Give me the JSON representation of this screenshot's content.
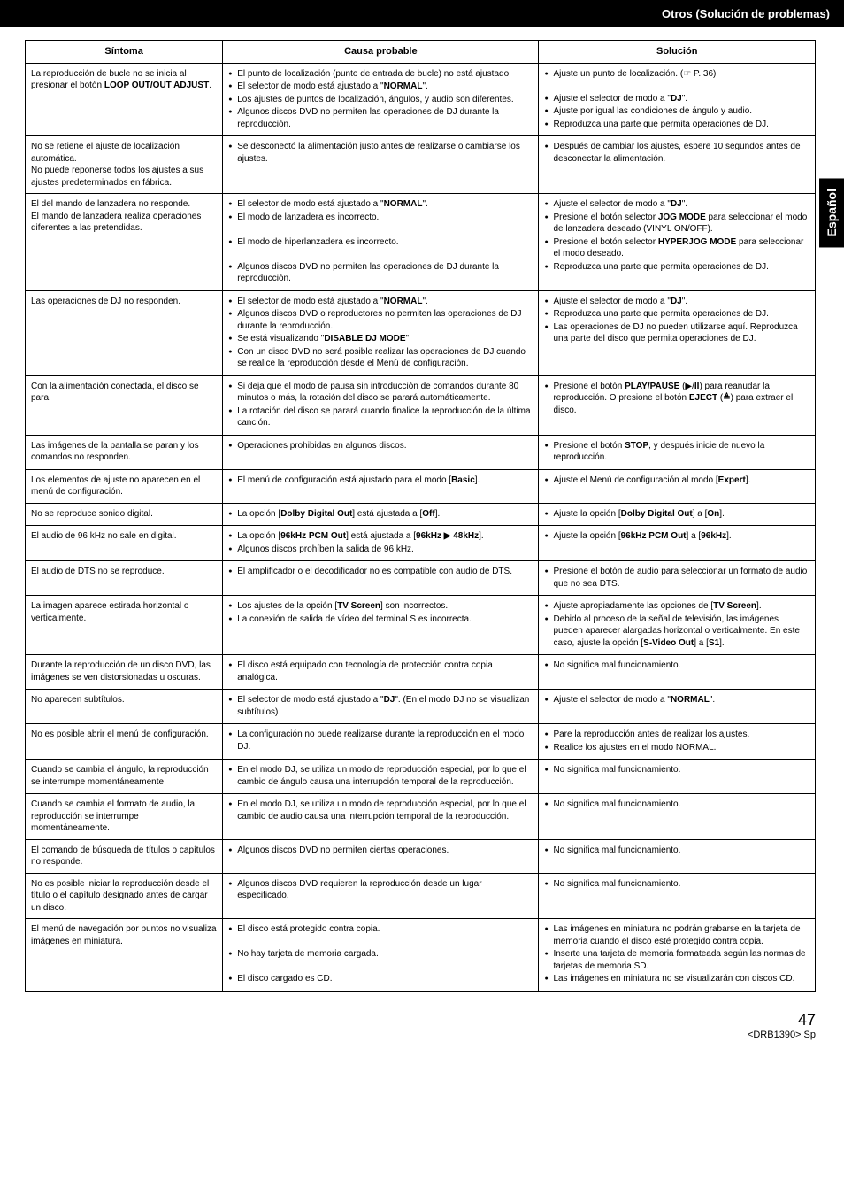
{
  "header": {
    "title": "Otros (Solución de problemas)"
  },
  "sidetab": {
    "label": "Español"
  },
  "footer": {
    "page": "47",
    "code": "<DRB1390> Sp"
  },
  "table": {
    "headers": {
      "c1": "Síntoma",
      "c2": "Causa probable",
      "c3": "Solución"
    },
    "rows": [
      {
        "c1": "La reproducción de bucle no se inicia al presionar el botón <b>LOOP OUT/OUT ADJUST</b>.",
        "c2": "<ul><li>El punto de localización (punto de entrada de bucle) no está ajustado.</li><li>El selector de modo está ajustado a \"<b>NORMAL</b>\".</li><li>Los ajustes de puntos de localización, ángulos, y audio son diferentes.</li><li>Algunos discos DVD no permiten las operaciones de DJ durante la reproducción.</li></ul>",
        "c3": "<ul><li>Ajuste un punto de localización. (☞ P. 36)</li></ul><br><ul><li>Ajuste el selector de modo a \"<b>DJ</b>\".</li><li>Ajuste por igual las condiciones de ángulo y audio.</li><li>Reproduzca una parte que permita operaciones de DJ.</li></ul>"
      },
      {
        "c1": "No se retiene el ajuste de localización automática.<br>No puede reponerse todos los ajustes a sus ajustes predeterminados en fábrica.",
        "c2": "<ul><li>Se desconectó la alimentación justo antes de realizarse o cambiarse los ajustes.</li></ul>",
        "c3": "<ul><li>Después de cambiar los ajustes, espere 10 segundos antes de desconectar la alimentación.</li></ul>"
      },
      {
        "c1": "El del mando de lanzadera no responde.<br>El mando de lanzadera realiza operaciones diferentes a las pretendidas.",
        "c2": "<ul><li>El selector de modo está ajustado a \"<b>NORMAL</b>\".</li><li>El modo de lanzadera es incorrecto.</li></ul><br><ul><li>El modo de hiperlanzadera es incorrecto.</li></ul><br><ul><li>Algunos discos DVD no permiten las operaciones de DJ durante la reproducción.</li></ul>",
        "c3": "<ul><li>Ajuste el selector de modo a \"<b>DJ</b>\".</li><li>Presione el botón selector <b>JOG MODE</b> para seleccionar el modo de lanzadera deseado (VINYL ON/OFF).</li><li>Presione el botón selector <b>HYPERJOG MODE</b> para seleccionar el modo deseado.</li><li>Reproduzca una parte que permita operaciones de DJ.</li></ul>"
      },
      {
        "c1": "Las operaciones de DJ no responden.",
        "c2": "<ul><li>El selector de modo está ajustado a \"<b>NORMAL</b>\".</li><li>Algunos discos DVD o reproductores no permiten las operaciones de DJ durante la reproducción.</li><li>Se está visualizando \"<b>DISABLE DJ MODE</b>\".</li><li>Con un disco DVD no será posible realizar las operaciones de DJ cuando se realice la reproducción desde el Menú de configuración.</li></ul>",
        "c3": "<ul><li>Ajuste el selector de modo a \"<b>DJ</b>\".</li><li>Reproduzca una parte que permita operaciones de DJ.</li><li>Las operaciones de DJ no pueden utilizarse aquí. Reproduzca una parte del disco que permita operaciones de DJ.</li></ul>"
      },
      {
        "c1": "Con la alimentación conectada, el disco se para.",
        "c2": "<ul><li>Si deja que el modo de pausa sin introducción de comandos durante 80 minutos o más, la rotación del disco se parará automáticamente.</li><li>La rotación del disco se parará cuando finalice la reproducción de la última canción.</li></ul>",
        "c3": "<ul><li>Presione el botón <b>PLAY/PAUSE</b> (▶/<b>II</b>) para reanudar la reproducción. O presione el botón <b>EJECT</b> (<span class='ejecticon'>≜</span>) para extraer el disco.</li></ul>"
      },
      {
        "c1": "Las imágenes de la pantalla se paran y los comandos no responden.",
        "c2": "<ul><li>Operaciones prohibidas en algunos discos.</li></ul>",
        "c3": "<ul><li>Presione el botón <b>STOP</b>, y después inicie de nuevo la reproducción.</li></ul>"
      },
      {
        "c1": "Los elementos de ajuste no aparecen en el menú de configuración.",
        "c2": "<ul><li>El menú de configuración está ajustado para el modo [<b>Basic</b>].</li></ul>",
        "c3": "<ul><li>Ajuste el Menú de configuración al modo [<b>Expert</b>].</li></ul>"
      },
      {
        "c1": "No se reproduce sonido digital.",
        "c2": "<ul><li>La opción [<b>Dolby Digital Out</b>] está ajustada a [<b>Off</b>].</li></ul>",
        "c3": "<ul><li>Ajuste la opción [<b>Dolby Digital Out</b>] a [<b>On</b>].</li></ul>"
      },
      {
        "c1": "El audio de 96 kHz no sale en digital.",
        "c2": "<ul><li>La opción [<b>96kHz PCM Out</b>] está ajustada a [<b>96kHz ▶ 48kHz</b>].</li><li>Algunos discos prohíben la salida de 96 kHz.</li></ul>",
        "c3": "<ul><li>Ajuste la opción [<b>96kHz PCM Out</b>] a [<b>96kHz</b>].</li></ul>"
      },
      {
        "c1": "El audio de DTS no se reproduce.",
        "c2": "<ul><li>El amplificador o el decodificador no es compatible con audio de DTS.</li></ul>",
        "c3": "<ul><li>Presione el botón de audio para seleccionar un formato de audio que no sea DTS.</li></ul>"
      },
      {
        "c1": "La imagen aparece estirada horizontal o verticalmente.",
        "c2": "<ul><li>Los ajustes de la opción [<b>TV Screen</b>] son incorrectos.</li><li>La conexión de salida de vídeo del terminal S es incorrecta.</li></ul>",
        "c3": "<ul><li>Ajuste apropiadamente las opciones de [<b>TV Screen</b>].</li><li>Debido al proceso de la señal de televisión, las imágenes pueden aparecer alargadas horizontal o verticalmente. En este caso, ajuste la opción [<b>S-Video Out</b>] a [<b>S1</b>].</li></ul>"
      },
      {
        "c1": "Durante la reproducción de un disco DVD, las imágenes se ven distorsionadas u oscuras.",
        "c2": "<ul><li>El disco está equipado con tecnología de protección contra copia analógica.</li></ul>",
        "c3": "<ul><li>No significa mal funcionamiento.</li></ul>"
      },
      {
        "c1": "No aparecen subtítulos.",
        "c2": "<ul><li>El selector de modo está ajustado a \"<b>DJ</b>\". (En el modo DJ no se visualizan subtítulos)</li></ul>",
        "c3": "<ul><li>Ajuste el selector de modo a \"<b>NORMAL</b>\".</li></ul>"
      },
      {
        "c1": "No es posible abrir el menú de configuración.",
        "c2": "<ul><li>La configuración no puede realizarse durante la reproducción en el modo DJ.</li></ul>",
        "c3": "<ul><li>Pare la reproducción antes de realizar los ajustes.</li><li>Realice los ajustes en el modo NORMAL.</li></ul>"
      },
      {
        "c1": "Cuando se cambia el ángulo, la reproducción se interrumpe momentáneamente.",
        "c2": "<ul><li>En el modo DJ, se utiliza un modo de reproducción especial, por lo que el cambio de ángulo causa una interrupción temporal de la reproducción.</li></ul>",
        "c3": "<ul><li>No significa mal funcionamiento.</li></ul>"
      },
      {
        "c1": "Cuando se cambia el formato de audio, la reproducción se interrumpe momentáneamente.",
        "c2": "<ul><li>En el modo DJ, se utiliza un modo de reproducción especial, por lo que el cambio de audio causa una interrupción temporal de la reproducción.</li></ul>",
        "c3": "<ul><li>No significa mal funcionamiento.</li></ul>"
      },
      {
        "c1": "El comando de búsqueda de títulos o capítulos no responde.",
        "c2": "<ul><li>Algunos discos DVD no permiten ciertas operaciones.</li></ul>",
        "c3": "<ul><li>No significa mal funcionamiento.</li></ul>"
      },
      {
        "c1": "No es posible iniciar la reproducción desde el título o el capítulo designado antes de cargar un disco.",
        "c2": "<ul><li>Algunos discos DVD requieren la reproducción desde un lugar especificado.</li></ul>",
        "c3": "<ul><li>No significa mal funcionamiento.</li></ul>"
      },
      {
        "c1": "El menú de navegación por puntos no visualiza imágenes en miniatura.",
        "c2": "<ul><li>El disco está protegido contra copia.</li></ul><br><ul><li>No hay tarjeta de memoria cargada.</li></ul><br><ul><li>El disco cargado es CD.</li></ul>",
        "c3": "<ul><li>Las imágenes en miniatura no podrán grabarse en la tarjeta de memoria cuando el disco esté protegido contra copia.</li><li>Inserte una tarjeta de memoria formateada según las normas de tarjetas de memoria SD.</li><li>Las imágenes en miniatura no se visualizarán con discos CD.</li></ul>"
      }
    ]
  }
}
